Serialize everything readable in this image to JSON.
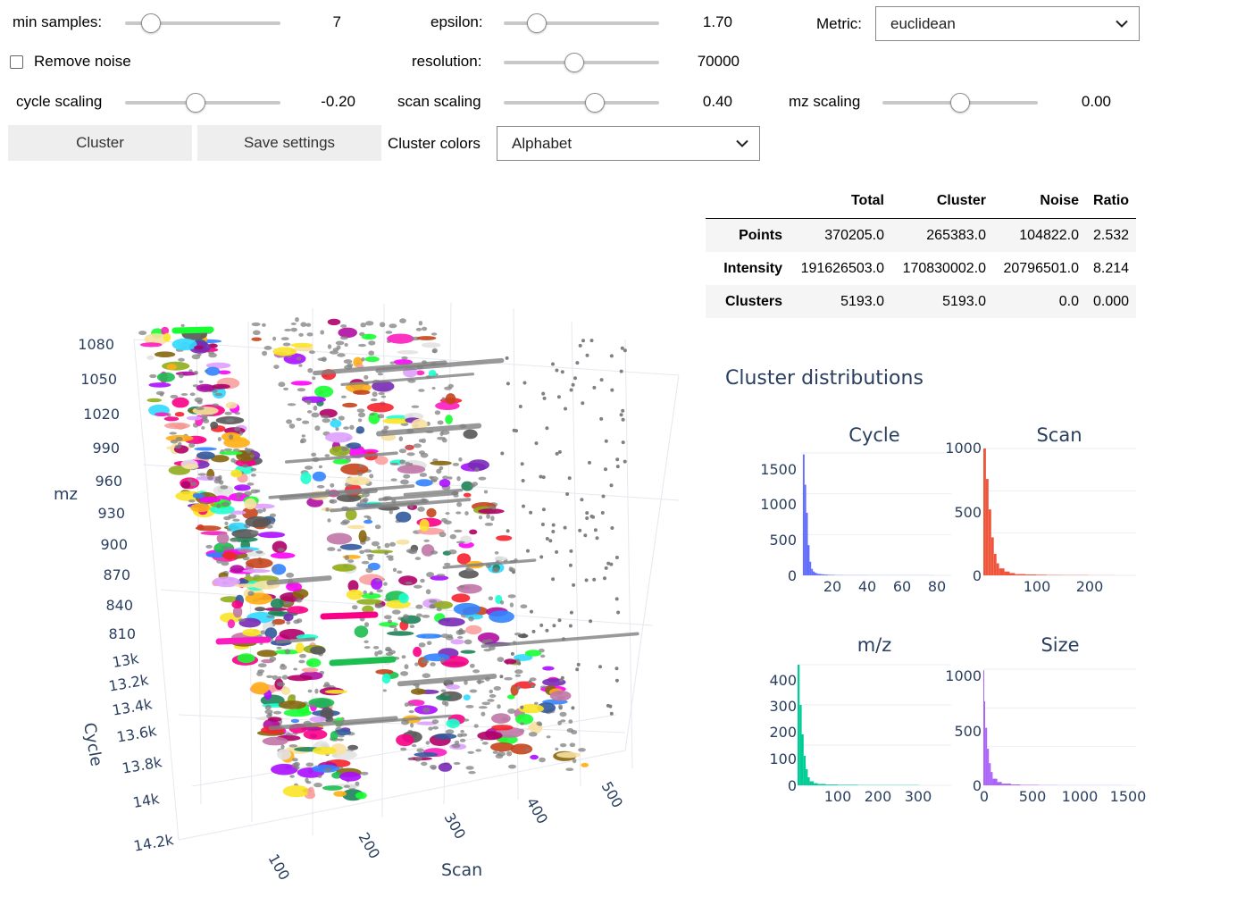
{
  "controls": {
    "min_samples": {
      "label": "min samples:",
      "value": "7",
      "fraction": 0.12
    },
    "epsilon": {
      "label": "epsilon:",
      "value": "1.70",
      "fraction": 0.17
    },
    "metric": {
      "label": "Metric:",
      "selected": "euclidean"
    },
    "remove_noise": {
      "label": "Remove noise",
      "checked": false
    },
    "resolution": {
      "label": "resolution:",
      "value": "70000",
      "fraction": 0.45
    },
    "cycle_scaling": {
      "label": "cycle scaling",
      "value": "-0.20",
      "fraction": 0.45
    },
    "scan_scaling": {
      "label": "scan scaling",
      "value": "0.40",
      "fraction": 0.6
    },
    "mz_scaling": {
      "label": "mz scaling",
      "value": "0.00",
      "fraction": 0.5
    },
    "cluster_button": "Cluster",
    "save_button": "Save settings",
    "cluster_colors": {
      "label": "Cluster colors",
      "selected": "Alphabet"
    }
  },
  "stats_table": {
    "headers": [
      "",
      "Total",
      "Cluster",
      "Noise",
      "Ratio"
    ],
    "rows": [
      {
        "label": "Points",
        "values": [
          "370205.0",
          "265383.0",
          "104822.0",
          "2.532"
        ]
      },
      {
        "label": "Intensity",
        "values": [
          "191626503.0",
          "170830002.0",
          "20796501.0",
          "8.214"
        ]
      },
      {
        "label": "Clusters",
        "values": [
          "5193.0",
          "5193.0",
          "0.0",
          "0.000"
        ]
      }
    ]
  },
  "scatter3d": {
    "axis_mz": {
      "title": "mz",
      "ticks": [
        "1080",
        "1050",
        "1020",
        "990",
        "960",
        "930",
        "900",
        "870",
        "840",
        "810"
      ]
    },
    "axis_cycle": {
      "title": "Cycle",
      "ticks": [
        "13k",
        "13.2k",
        "13.4k",
        "13.6k",
        "13.8k",
        "14k",
        "14.2k"
      ]
    },
    "axis_scan": {
      "title": "Scan",
      "ticks": [
        "100",
        "200",
        "300",
        "400",
        "500"
      ]
    },
    "noise_color": "#808080",
    "cluster_palette": [
      "#AA0DFE",
      "#3283FE",
      "#85660D",
      "#782AB6",
      "#565656",
      "#1C8356",
      "#16FF32",
      "#F7E1A0",
      "#E2E2E2",
      "#1CBE4F",
      "#C4451C",
      "#DEA0FD",
      "#FE00FA",
      "#325A9B",
      "#FEAF16",
      "#F8A19F",
      "#90AD1C",
      "#F6222E",
      "#1CFFCE",
      "#2ED9FF",
      "#B10DA1",
      "#C075A6",
      "#FC1CBF",
      "#B00068",
      "#FBE426",
      "#FA0087"
    ]
  },
  "distributions": {
    "title": "Cluster distributions",
    "cycle": {
      "title": "Cycle",
      "color": "#636efa",
      "y_ticks": [
        "1500",
        "1000",
        "500",
        "0"
      ],
      "x_ticks": [
        "20",
        "40",
        "60",
        "80"
      ]
    },
    "scan": {
      "title": "Scan",
      "color": "#EF553B",
      "y_ticks": [
        "1000",
        "500",
        "0"
      ],
      "x_ticks": [
        "100",
        "200"
      ]
    },
    "mz": {
      "title": "m/z",
      "color": "#00cc96",
      "y_ticks": [
        "400",
        "300",
        "200",
        "100",
        "0"
      ],
      "x_ticks": [
        "100",
        "200",
        "300"
      ]
    },
    "size": {
      "title": "Size",
      "color": "#ab63fa",
      "y_ticks": [
        "1000",
        "500",
        "0"
      ],
      "x_ticks": [
        "0",
        "500",
        "1000",
        "1500"
      ]
    }
  },
  "chart_data": [
    {
      "type": "bar",
      "title": "Cycle",
      "x": [
        2,
        3,
        4,
        5,
        6,
        7,
        8,
        9,
        10,
        12,
        14,
        16,
        18,
        20,
        25,
        30,
        40,
        50,
        60,
        70,
        80
      ],
      "values": [
        1680,
        1260,
        870,
        420,
        190,
        90,
        55,
        38,
        28,
        20,
        15,
        11,
        8,
        6,
        4,
        3,
        2,
        1,
        1,
        1,
        1
      ],
      "ylim": [
        0,
        1700
      ],
      "xlim": [
        0,
        90
      ]
    },
    {
      "type": "bar",
      "title": "Scan",
      "x": [
        5,
        10,
        15,
        20,
        25,
        30,
        40,
        50,
        60,
        80,
        100,
        120,
        150,
        200,
        250
      ],
      "values": [
        1000,
        760,
        520,
        300,
        170,
        95,
        55,
        30,
        18,
        10,
        7,
        5,
        3,
        2,
        1
      ],
      "ylim": [
        0,
        1000
      ],
      "xlim": [
        0,
        290
      ]
    },
    {
      "type": "bar",
      "title": "m/z",
      "x": [
        5,
        10,
        15,
        20,
        25,
        30,
        40,
        50,
        70,
        100,
        150,
        200,
        300
      ],
      "values": [
        450,
        300,
        190,
        110,
        60,
        30,
        15,
        8,
        5,
        3,
        2,
        1,
        1
      ],
      "ylim": [
        0,
        450
      ],
      "xlim": [
        0,
        380
      ]
    },
    {
      "type": "bar",
      "title": "Size",
      "x": [
        10,
        20,
        40,
        60,
        80,
        100,
        150,
        200,
        300,
        400,
        600,
        800,
        1000,
        1500
      ],
      "values": [
        1040,
        760,
        520,
        330,
        200,
        120,
        60,
        30,
        15,
        8,
        4,
        2,
        1,
        1
      ],
      "ylim": [
        0,
        1050
      ],
      "xlim": [
        0,
        1650
      ]
    }
  ]
}
